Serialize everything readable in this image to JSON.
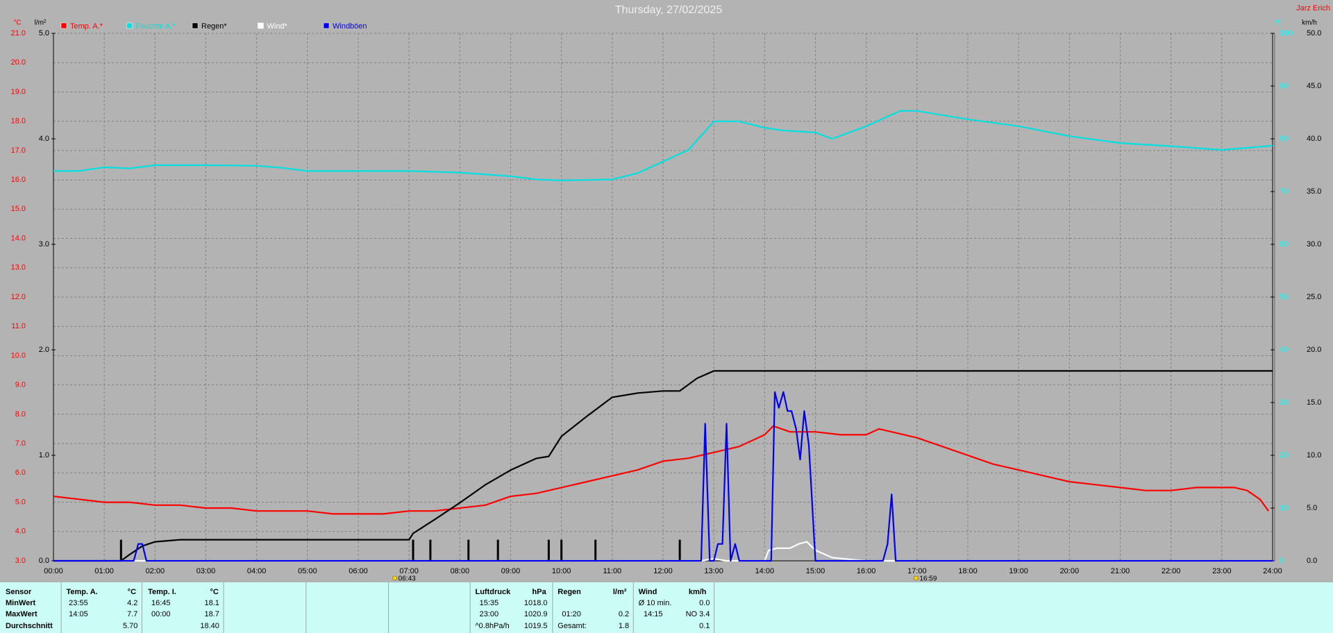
{
  "chart_data": {
    "type": "line",
    "title": "Thursday, 27/02/2025",
    "author": "Jarz Erich",
    "xlim": [
      0,
      24
    ],
    "xticks": [
      {
        "value": 0,
        "label": "00:00"
      },
      {
        "value": 1,
        "label": "01:00"
      },
      {
        "value": 2,
        "label": "02:00"
      },
      {
        "value": 3,
        "label": "03:00"
      },
      {
        "value": 4,
        "label": "04:00"
      },
      {
        "value": 5,
        "label": "05:00"
      },
      {
        "value": 6,
        "label": "06:00"
      },
      {
        "value": 7,
        "label": "07:00"
      },
      {
        "value": 8,
        "label": "08:00"
      },
      {
        "value": 9,
        "label": "09:00"
      },
      {
        "value": 10,
        "label": "10:00"
      },
      {
        "value": 11,
        "label": "11:00"
      },
      {
        "value": 12,
        "label": "12:00"
      },
      {
        "value": 13,
        "label": "13:00"
      },
      {
        "value": 14,
        "label": "14:00"
      },
      {
        "value": 15,
        "label": "15:00"
      },
      {
        "value": 16,
        "label": "16:00"
      },
      {
        "value": 17,
        "label": "17:00"
      },
      {
        "value": 18,
        "label": "18:00"
      },
      {
        "value": 19,
        "label": "19:00"
      },
      {
        "value": 20,
        "label": "20:00"
      },
      {
        "value": 21,
        "label": "21:00"
      },
      {
        "value": 22,
        "label": "22:00"
      },
      {
        "value": 23,
        "label": "23:00"
      },
      {
        "value": 24,
        "label": "24:00"
      }
    ],
    "grid": true,
    "axes": {
      "temp": {
        "label": "°C",
        "color": "#ff0000",
        "ylim": [
          3,
          21
        ],
        "yticks": [
          {
            "value": 3,
            "label": "3.0"
          },
          {
            "value": 4,
            "label": "4.0"
          },
          {
            "value": 5,
            "label": "5.0"
          },
          {
            "value": 6,
            "label": "6.0"
          },
          {
            "value": 7,
            "label": "7.0"
          },
          {
            "value": 8,
            "label": "8.0"
          },
          {
            "value": 9,
            "label": "9.0"
          },
          {
            "value": 10,
            "label": "10.0"
          },
          {
            "value": 11,
            "label": "11.0"
          },
          {
            "value": 12,
            "label": "12.0"
          },
          {
            "value": 13,
            "label": "13.0"
          },
          {
            "value": 14,
            "label": "14.0"
          },
          {
            "value": 15,
            "label": "15.0"
          },
          {
            "value": 16,
            "label": "16.0"
          },
          {
            "value": 17,
            "label": "17.0"
          },
          {
            "value": 18,
            "label": "18.0"
          },
          {
            "value": 19,
            "label": "19.0"
          },
          {
            "value": 20,
            "label": "20.0"
          },
          {
            "value": 21,
            "label": "21.0"
          }
        ]
      },
      "rain": {
        "label": "l/m²",
        "color": "#000000",
        "ylim": [
          0,
          5
        ],
        "yticks": [
          {
            "value": 0,
            "label": "0.0"
          },
          {
            "value": 1,
            "label": "1.0"
          },
          {
            "value": 2,
            "label": "2.0"
          },
          {
            "value": 3,
            "label": "3.0"
          },
          {
            "value": 4,
            "label": "4.0"
          },
          {
            "value": 5,
            "label": "5.0"
          }
        ]
      },
      "humidity": {
        "label": "%",
        "color": "#00ffff",
        "ylim": [
          0,
          100
        ],
        "yticks": [
          0,
          10,
          20,
          30,
          40,
          50,
          60,
          70,
          80,
          90,
          100
        ]
      },
      "wind": {
        "label": "km/h",
        "color": "#000000",
        "ylim": [
          0,
          50
        ],
        "yticks": [
          {
            "value": 0,
            "label": "0.0"
          },
          {
            "value": 5,
            "label": "5.0"
          },
          {
            "value": 10,
            "label": "10.0"
          },
          {
            "value": 15,
            "label": "15.0"
          },
          {
            "value": 20,
            "label": "20.0"
          },
          {
            "value": 25,
            "label": "25.0"
          },
          {
            "value": 30,
            "label": "30.0"
          },
          {
            "value": 35,
            "label": "35.0"
          },
          {
            "value": 40,
            "label": "40.0"
          },
          {
            "value": 45,
            "label": "45.0"
          },
          {
            "value": 50,
            "label": "50.0"
          }
        ]
      }
    },
    "series": [
      {
        "name": "Temp. A.*",
        "color": "#ff0000",
        "axis": "temp",
        "x": [
          0,
          0.5,
          1,
          1.5,
          2,
          2.5,
          3,
          3.5,
          4,
          4.5,
          5,
          5.5,
          6,
          6.5,
          7,
          7.5,
          8,
          8.5,
          9,
          9.5,
          10,
          10.5,
          11,
          11.5,
          12,
          12.5,
          13,
          13.5,
          14,
          14.17,
          14.5,
          15,
          15.5,
          16,
          16.25,
          16.5,
          17,
          17.5,
          18,
          18.5,
          19,
          19.5,
          20,
          20.5,
          21,
          21.5,
          22,
          22.5,
          23,
          23.25,
          23.5,
          23.75,
          23.92
        ],
        "values": [
          5.2,
          5.1,
          5.0,
          5.0,
          4.9,
          4.9,
          4.8,
          4.8,
          4.7,
          4.7,
          4.7,
          4.6,
          4.6,
          4.6,
          4.7,
          4.7,
          4.8,
          4.9,
          5.2,
          5.3,
          5.5,
          5.7,
          5.9,
          6.1,
          6.4,
          6.5,
          6.7,
          6.9,
          7.3,
          7.6,
          7.4,
          7.4,
          7.3,
          7.3,
          7.5,
          7.4,
          7.2,
          6.9,
          6.6,
          6.3,
          6.1,
          5.9,
          5.7,
          5.6,
          5.5,
          5.4,
          5.4,
          5.5,
          5.5,
          5.5,
          5.4,
          5.1,
          4.7
        ]
      },
      {
        "name": "Feuchte A.*",
        "color": "#00e0e0",
        "axis": "humidity",
        "x": [
          0,
          0.5,
          1,
          1.5,
          2,
          3,
          4,
          4.5,
          5,
          6,
          7,
          8,
          9,
          9.5,
          10,
          11,
          11.5,
          12,
          12.5,
          13,
          13.5,
          14,
          14.33,
          15,
          15.33,
          16,
          16.67,
          17,
          18,
          19,
          20,
          21,
          22,
          23,
          24
        ],
        "values": [
          73.9,
          73.9,
          74.6,
          74.4,
          75,
          75,
          74.9,
          74.5,
          73.9,
          73.9,
          73.9,
          73.6,
          72.9,
          72.3,
          72.1,
          72.3,
          73.5,
          75.7,
          77.9,
          83.3,
          83.3,
          82.1,
          81.6,
          81.2,
          80,
          82.4,
          85.3,
          85.3,
          83.7,
          82.4,
          80.5,
          79.2,
          78.6,
          77.9,
          78.7
        ]
      },
      {
        "name": "Regen*",
        "color": "#000000",
        "axis": "rain",
        "x": [
          0,
          1.33,
          1.5,
          1.75,
          2,
          2.5,
          7,
          7.08,
          7.5,
          8,
          8.5,
          9,
          9.5,
          9.75,
          10,
          10.5,
          11,
          11.5,
          12,
          12.33,
          12.67,
          13,
          14,
          24
        ],
        "values": [
          0,
          0,
          0.06,
          0.14,
          0.18,
          0.2,
          0.2,
          0.26,
          0.39,
          0.55,
          0.72,
          0.86,
          0.97,
          0.99,
          1.18,
          1.37,
          1.55,
          1.59,
          1.61,
          1.61,
          1.73,
          1.8,
          1.8,
          1.8
        ]
      },
      {
        "name": "Wind*",
        "color": "#ffffff",
        "axis": "wind",
        "x": [
          0,
          12.75,
          13,
          13.25,
          14,
          14.08,
          14.25,
          14.5,
          14.67,
          14.83,
          15,
          15.33,
          15.75,
          16,
          24
        ],
        "values": [
          0,
          0,
          0.2,
          0,
          0,
          1.0,
          1.2,
          1.2,
          1.6,
          1.8,
          1.0,
          0.3,
          0.1,
          0,
          0
        ]
      },
      {
        "name": "Windböen",
        "color": "#0000ee",
        "axis": "wind",
        "x": [
          0,
          1.58,
          1.67,
          1.75,
          1.83,
          1.92,
          12.75,
          12.83,
          12.92,
          13.0,
          13.08,
          13.17,
          13.25,
          13.33,
          13.42,
          13.5,
          13.58,
          14.13,
          14.2,
          14.28,
          14.37,
          14.45,
          14.53,
          14.62,
          14.7,
          14.78,
          14.87,
          15.0,
          16.33,
          16.42,
          16.5,
          16.58,
          24
        ],
        "values": [
          0,
          0,
          1.6,
          1.6,
          0,
          0,
          0,
          13,
          0,
          0,
          1.6,
          1.6,
          13,
          0,
          1.6,
          0,
          0,
          0,
          16,
          14.5,
          16,
          14.2,
          14.2,
          12.5,
          9.6,
          14.2,
          11,
          0,
          0,
          1.6,
          6.3,
          0,
          0
        ]
      }
    ],
    "rain_events": {
      "color": "#000000",
      "axis": "rain",
      "x": [
        1.33,
        7.08,
        7.42,
        8.17,
        8.75,
        9.75,
        10.0,
        10.67,
        12.33
      ],
      "values": [
        0.2,
        0.2,
        0.2,
        0.2,
        0.2,
        0.2,
        0.2,
        0.2,
        0.2
      ]
    },
    "annotations": [
      {
        "x": 6.72,
        "label": "06:43"
      },
      {
        "x": 16.98,
        "label": "16:59"
      }
    ]
  },
  "stats": {
    "row_labels": [
      "Sensor",
      "MinWert",
      "MaxWert",
      "Durchschnitt"
    ],
    "columns": [
      {
        "name": "Temp. A.",
        "unit": "°C",
        "rows": [
          [
            "23:55",
            "4.2"
          ],
          [
            "14:05",
            "7.7"
          ],
          [
            null,
            "5.70"
          ]
        ]
      },
      {
        "name": "Temp. I.",
        "unit": "°C",
        "rows": [
          [
            "16:45",
            "18.1"
          ],
          [
            "00:00",
            "18.7"
          ],
          [
            null,
            "18.40"
          ]
        ]
      },
      {
        "name": "Luftdruck",
        "unit": "hPa",
        "rows": [
          [
            "15:35",
            "1018.0"
          ],
          [
            "23:00",
            "1020.9"
          ],
          [
            "^0.8hPa/h",
            "1019.5"
          ]
        ]
      },
      {
        "name": "Regen",
        "unit": "l/m²",
        "rows": [
          [
            null,
            null
          ],
          [
            "01:20",
            "0.2"
          ],
          [
            "Gesamt:",
            "1.8"
          ]
        ]
      },
      {
        "name": "Wind",
        "unit": "km/h",
        "rows": [
          [
            "Ø 10 min.",
            "0.0"
          ],
          [
            "14:15",
            "NO 3.4"
          ],
          [
            null,
            "0.1"
          ]
        ]
      }
    ]
  }
}
